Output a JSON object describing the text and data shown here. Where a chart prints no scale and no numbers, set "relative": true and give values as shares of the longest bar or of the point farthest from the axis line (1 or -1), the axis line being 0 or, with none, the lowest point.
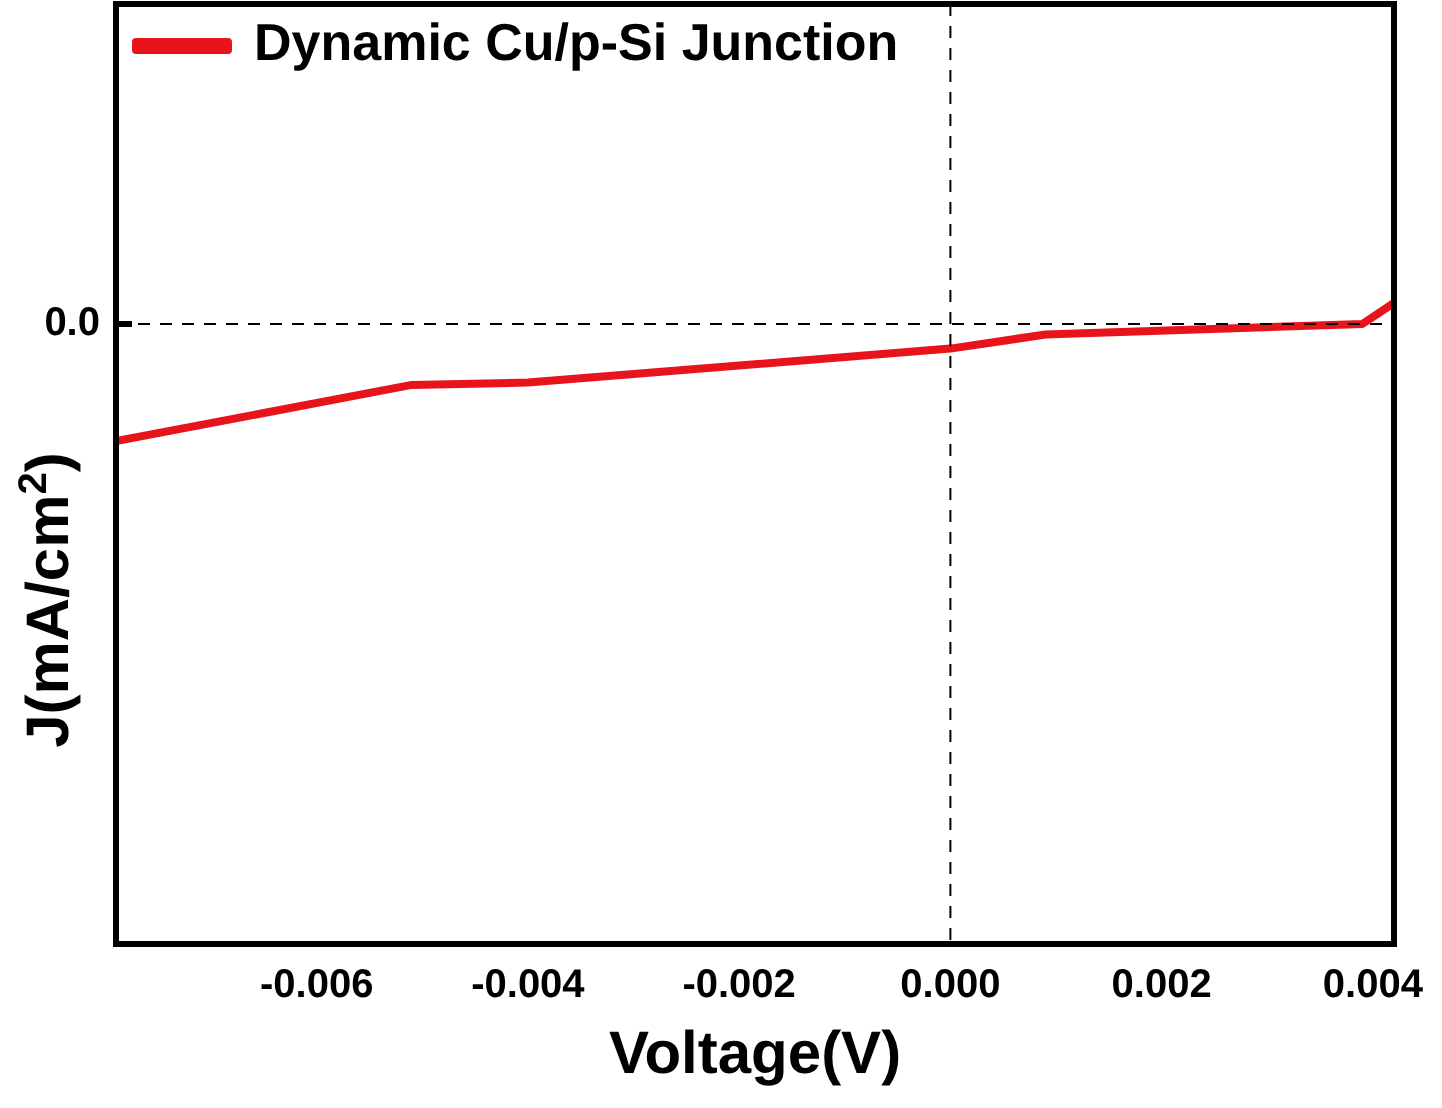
{
  "chart_data": {
    "type": "line",
    "relative": true,
    "xlabel": "Voltage(V)",
    "ylabel": "J(mA/cm$^{2}$)",
    "x": [
      -0.0079,
      -0.0051,
      -0.004,
      0,
      0.0009,
      0.0039,
      0.0042
    ],
    "series": [
      {
        "name": "Dynamic Cu/p-Si Junction",
        "color": "#e8141b",
        "values": [
          -1,
          -0.52,
          -0.5,
          -0.21,
          -0.09,
          0,
          0.18
        ]
      }
    ],
    "xlim": [
      -0.0079,
      0.0042
    ],
    "xticks": [
      -0.006,
      -0.004,
      -0.002,
      {
        "value": 0,
        "label": "0.000"
      },
      0.002,
      0.004
    ],
    "ref_lines": [
      {
        "axis": "y",
        "value": 0,
        "label": "0.0",
        "line_style": "dashed"
      },
      {
        "axis": "x",
        "value": 0,
        "line_style": "dashed"
      }
    ],
    "legend": "top left",
    "grid": false,
    "marker": "none",
    "line_style": "solid"
  }
}
